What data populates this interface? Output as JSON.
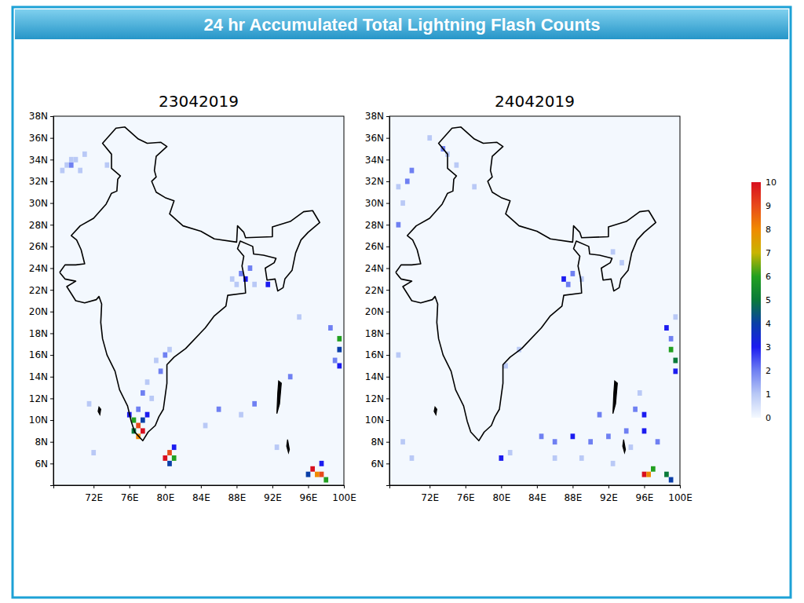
{
  "title": "24 hr Accumulated Total Lightning Flash Counts",
  "colorbar": {
    "range": [
      0,
      10
    ],
    "ticks": [
      0,
      1,
      2,
      3,
      4,
      5,
      6,
      7,
      8,
      9,
      10
    ],
    "colors": [
      "#f4f9ff",
      "#b9c9f6",
      "#6f80f2",
      "#1c1cf0",
      "#0a3fa8",
      "#0a7a3a",
      "#22a020",
      "#c8b400",
      "#f08a00",
      "#e84a1a",
      "#d81020"
    ]
  },
  "outline": [
    [
      68.2,
      23.6
    ],
    [
      68.8,
      24.3
    ],
    [
      70.0,
      24.3
    ],
    [
      71.0,
      24.4
    ],
    [
      70.6,
      25.7
    ],
    [
      70.1,
      26.6
    ],
    [
      69.5,
      27.0
    ],
    [
      70.5,
      27.9
    ],
    [
      72.0,
      28.6
    ],
    [
      73.4,
      29.9
    ],
    [
      74.0,
      30.9
    ],
    [
      74.6,
      31.1
    ],
    [
      74.7,
      32.2
    ],
    [
      75.0,
      32.5
    ],
    [
      74.0,
      33.2
    ],
    [
      74.0,
      34.5
    ],
    [
      73.0,
      35.5
    ],
    [
      74.5,
      36.9
    ],
    [
      75.5,
      37.0
    ],
    [
      77.0,
      35.9
    ],
    [
      78.0,
      35.5
    ],
    [
      79.5,
      35.6
    ],
    [
      80.2,
      35.2
    ],
    [
      79.0,
      34.3
    ],
    [
      78.8,
      33.0
    ],
    [
      79.0,
      32.4
    ],
    [
      78.5,
      32.0
    ],
    [
      79.0,
      31.0
    ],
    [
      80.0,
      30.5
    ],
    [
      81.0,
      30.2
    ],
    [
      80.5,
      29.0
    ],
    [
      82.0,
      27.9
    ],
    [
      84.0,
      27.4
    ],
    [
      85.5,
      26.7
    ],
    [
      88.0,
      26.4
    ],
    [
      88.1,
      27.9
    ],
    [
      88.8,
      27.3
    ],
    [
      89.0,
      26.8
    ],
    [
      92.0,
      26.9
    ],
    [
      92.0,
      27.8
    ],
    [
      94.0,
      28.3
    ],
    [
      95.5,
      29.2
    ],
    [
      96.5,
      29.3
    ],
    [
      97.3,
      28.2
    ],
    [
      96.0,
      27.3
    ],
    [
      95.2,
      26.6
    ],
    [
      94.6,
      25.4
    ],
    [
      94.2,
      23.8
    ],
    [
      93.4,
      23.0
    ],
    [
      93.2,
      22.2
    ],
    [
      92.6,
      21.9
    ],
    [
      92.3,
      23.0
    ],
    [
      91.4,
      22.9
    ],
    [
      91.2,
      24.0
    ],
    [
      92.2,
      24.5
    ],
    [
      92.4,
      24.9
    ],
    [
      91.0,
      25.2
    ],
    [
      89.9,
      25.3
    ],
    [
      89.8,
      26.0
    ],
    [
      88.4,
      26.5
    ],
    [
      88.1,
      25.8
    ],
    [
      88.8,
      25.1
    ],
    [
      88.6,
      24.2
    ],
    [
      88.9,
      23.0
    ],
    [
      89.0,
      21.7
    ],
    [
      87.0,
      21.5
    ],
    [
      86.8,
      20.5
    ],
    [
      85.5,
      19.6
    ],
    [
      84.5,
      18.5
    ],
    [
      82.3,
      16.6
    ],
    [
      81.0,
      15.8
    ],
    [
      80.2,
      15.1
    ],
    [
      80.2,
      13.4
    ],
    [
      79.8,
      11.0
    ],
    [
      79.3,
      10.3
    ],
    [
      78.9,
      9.5
    ],
    [
      78.1,
      8.9
    ],
    [
      77.5,
      8.1
    ],
    [
      76.6,
      8.9
    ],
    [
      76.2,
      9.9
    ],
    [
      75.8,
      11.3
    ],
    [
      74.9,
      12.8
    ],
    [
      74.4,
      14.5
    ],
    [
      73.5,
      16.0
    ],
    [
      73.0,
      17.5
    ],
    [
      72.8,
      19.0
    ],
    [
      72.9,
      20.7
    ],
    [
      72.6,
      21.4
    ],
    [
      72.3,
      21.1
    ],
    [
      71.0,
      20.8
    ],
    [
      70.0,
      21.0
    ],
    [
      69.0,
      22.3
    ],
    [
      70.0,
      22.8
    ],
    [
      68.8,
      23.0
    ],
    [
      68.2,
      23.6
    ]
  ],
  "islands": [
    [
      [
        92.7,
        13.6
      ],
      [
        93.0,
        13.4
      ],
      [
        92.8,
        11.5
      ],
      [
        92.5,
        10.6
      ],
      [
        92.6,
        12.5
      ]
    ],
    [
      [
        93.8,
        7.0
      ],
      [
        93.9,
        7.3
      ],
      [
        93.7,
        8.2
      ],
      [
        93.6,
        7.6
      ]
    ],
    [
      [
        72.6,
        11.2
      ],
      [
        72.8,
        11.0
      ],
      [
        72.7,
        10.5
      ],
      [
        72.5,
        10.8
      ]
    ]
  ],
  "chart_data": [
    {
      "type": "map",
      "title": "23042019",
      "cell_size": 0.5,
      "xlim": [
        67.5,
        100
      ],
      "ylim": [
        4,
        38
      ],
      "xticks": [
        {
          "value": 72,
          "label": "72E"
        },
        {
          "value": 76,
          "label": "76E"
        },
        {
          "value": 80,
          "label": "80E"
        },
        {
          "value": 84,
          "label": "84E"
        },
        {
          "value": 88,
          "label": "88E"
        },
        {
          "value": 92,
          "label": "92E"
        },
        {
          "value": 96,
          "label": "96E"
        },
        {
          "value": 100,
          "label": "100E"
        }
      ],
      "yticks": [
        {
          "value": 6,
          "label": "6N"
        },
        {
          "value": 8,
          "label": "8N"
        },
        {
          "value": 10,
          "label": "10N"
        },
        {
          "value": 12,
          "label": "12N"
        },
        {
          "value": 14,
          "label": "14N"
        },
        {
          "value": 16,
          "label": "16N"
        },
        {
          "value": 18,
          "label": "18N"
        },
        {
          "value": 20,
          "label": "20N"
        },
        {
          "value": 22,
          "label": "22N"
        },
        {
          "value": 24,
          "label": "24N"
        },
        {
          "value": 26,
          "label": "26N"
        },
        {
          "value": 28,
          "label": "28N"
        },
        {
          "value": 30,
          "label": "30N"
        },
        {
          "value": 32,
          "label": "32N"
        },
        {
          "value": 34,
          "label": "34N"
        },
        {
          "value": 36,
          "label": "36N"
        },
        {
          "value": 38,
          "label": "38N"
        }
      ],
      "cells": [
        [
          69.0,
          33.5,
          1
        ],
        [
          69.5,
          33.5,
          2
        ],
        [
          70.0,
          34.0,
          1
        ],
        [
          69.5,
          34.0,
          1
        ],
        [
          70.5,
          33.0,
          1
        ],
        [
          71.0,
          34.5,
          1
        ],
        [
          68.5,
          33.0,
          1
        ],
        [
          73.5,
          33.5,
          1
        ],
        [
          88.5,
          23.5,
          2
        ],
        [
          89.0,
          23.0,
          3
        ],
        [
          89.5,
          24.0,
          2
        ],
        [
          88.0,
          22.5,
          1
        ],
        [
          87.5,
          23.0,
          1
        ],
        [
          90.0,
          22.5,
          1
        ],
        [
          91.5,
          22.5,
          3
        ],
        [
          80.0,
          16.0,
          2
        ],
        [
          80.5,
          16.5,
          1
        ],
        [
          79.5,
          14.5,
          2
        ],
        [
          79.0,
          15.5,
          1
        ],
        [
          78.0,
          13.5,
          1
        ],
        [
          77.5,
          12.5,
          2
        ],
        [
          78.5,
          12.0,
          1
        ],
        [
          76.5,
          10.0,
          6
        ],
        [
          77.0,
          9.5,
          9
        ],
        [
          77.5,
          9.0,
          10
        ],
        [
          77.0,
          8.5,
          8
        ],
        [
          76.5,
          9.0,
          5
        ],
        [
          77.5,
          10.0,
          4
        ],
        [
          78.0,
          10.5,
          3
        ],
        [
          76.0,
          10.5,
          3
        ],
        [
          77.0,
          11.0,
          2
        ],
        [
          80.5,
          7.0,
          9
        ],
        [
          80.0,
          6.5,
          10
        ],
        [
          81.0,
          6.5,
          6
        ],
        [
          80.5,
          6.0,
          4
        ],
        [
          81.0,
          7.5,
          3
        ],
        [
          96.5,
          5.5,
          10
        ],
        [
          97.0,
          5.0,
          8
        ],
        [
          97.5,
          5.0,
          9
        ],
        [
          96.0,
          5.0,
          4
        ],
        [
          98.0,
          4.5,
          6
        ],
        [
          97.5,
          6.0,
          3
        ],
        [
          99.5,
          16.5,
          4
        ],
        [
          99.5,
          17.5,
          6
        ],
        [
          99.0,
          15.5,
          2
        ],
        [
          99.5,
          15.0,
          3
        ],
        [
          98.5,
          18.5,
          2
        ],
        [
          86.0,
          11.0,
          2
        ],
        [
          88.5,
          10.5,
          1
        ],
        [
          90.0,
          11.5,
          2
        ],
        [
          84.5,
          9.5,
          1
        ],
        [
          94.0,
          14.0,
          2
        ],
        [
          95.0,
          19.5,
          1
        ],
        [
          92.5,
          7.5,
          1
        ],
        [
          71.5,
          11.5,
          1
        ],
        [
          72.0,
          7.0,
          1
        ]
      ]
    },
    {
      "type": "map",
      "title": "24042019",
      "cell_size": 0.5,
      "xlim": [
        67.5,
        100
      ],
      "ylim": [
        4,
        38
      ],
      "xticks": [
        {
          "value": 72,
          "label": "72E"
        },
        {
          "value": 76,
          "label": "76E"
        },
        {
          "value": 80,
          "label": "80E"
        },
        {
          "value": 84,
          "label": "84E"
        },
        {
          "value": 88,
          "label": "88E"
        },
        {
          "value": 92,
          "label": "92E"
        },
        {
          "value": 96,
          "label": "96E"
        },
        {
          "value": 100,
          "label": "100E"
        }
      ],
      "yticks": [
        {
          "value": 6,
          "label": "6N"
        },
        {
          "value": 8,
          "label": "8N"
        },
        {
          "value": 10,
          "label": "10N"
        },
        {
          "value": 12,
          "label": "12N"
        },
        {
          "value": 14,
          "label": "14N"
        },
        {
          "value": 16,
          "label": "16N"
        },
        {
          "value": 18,
          "label": "18N"
        },
        {
          "value": 20,
          "label": "20N"
        },
        {
          "value": 22,
          "label": "22N"
        },
        {
          "value": 24,
          "label": "24N"
        },
        {
          "value": 26,
          "label": "26N"
        },
        {
          "value": 28,
          "label": "28N"
        },
        {
          "value": 30,
          "label": "30N"
        },
        {
          "value": 32,
          "label": "32N"
        },
        {
          "value": 34,
          "label": "34N"
        },
        {
          "value": 36,
          "label": "36N"
        },
        {
          "value": 38,
          "label": "38N"
        }
      ],
      "cells": [
        [
          69.5,
          32.0,
          2
        ],
        [
          70.0,
          33.0,
          2
        ],
        [
          68.5,
          31.5,
          1
        ],
        [
          68.5,
          28.0,
          2
        ],
        [
          69.0,
          30.0,
          1
        ],
        [
          73.5,
          35.0,
          2
        ],
        [
          74.0,
          34.5,
          1
        ],
        [
          75.0,
          33.5,
          1
        ],
        [
          77.0,
          31.5,
          1
        ],
        [
          72.0,
          36.0,
          1
        ],
        [
          87.0,
          23.0,
          3
        ],
        [
          87.5,
          22.5,
          2
        ],
        [
          88.0,
          23.5,
          2
        ],
        [
          89.0,
          23.0,
          1
        ],
        [
          92.5,
          25.5,
          1
        ],
        [
          93.5,
          24.5,
          1
        ],
        [
          82.0,
          16.5,
          1
        ],
        [
          80.5,
          15.0,
          1
        ],
        [
          80.0,
          6.5,
          3
        ],
        [
          81.0,
          7.0,
          1
        ],
        [
          84.5,
          8.5,
          2
        ],
        [
          86.0,
          8.0,
          2
        ],
        [
          88.0,
          8.5,
          3
        ],
        [
          90.0,
          8.0,
          2
        ],
        [
          92.0,
          8.5,
          2
        ],
        [
          94.0,
          9.0,
          2
        ],
        [
          96.0,
          9.0,
          3
        ],
        [
          97.5,
          8.0,
          2
        ],
        [
          86.0,
          6.5,
          1
        ],
        [
          89.0,
          6.5,
          1
        ],
        [
          92.5,
          6.0,
          1
        ],
        [
          95.0,
          11.0,
          2
        ],
        [
          95.5,
          12.5,
          1
        ],
        [
          96.0,
          10.5,
          3
        ],
        [
          91.0,
          10.5,
          2
        ],
        [
          94.5,
          7.5,
          1
        ],
        [
          96.0,
          5.0,
          10
        ],
        [
          96.5,
          5.0,
          8
        ],
        [
          97.0,
          5.5,
          6
        ],
        [
          98.5,
          5.0,
          5
        ],
        [
          99.0,
          4.5,
          4
        ],
        [
          99.0,
          16.5,
          6
        ],
        [
          99.5,
          15.5,
          5
        ],
        [
          99.5,
          14.5,
          3
        ],
        [
          99.0,
          17.5,
          2
        ],
        [
          98.5,
          18.5,
          3
        ],
        [
          99.5,
          19.5,
          1
        ],
        [
          68.5,
          16.0,
          1
        ],
        [
          69.0,
          8.0,
          1
        ],
        [
          70.0,
          6.5,
          1
        ]
      ]
    }
  ]
}
